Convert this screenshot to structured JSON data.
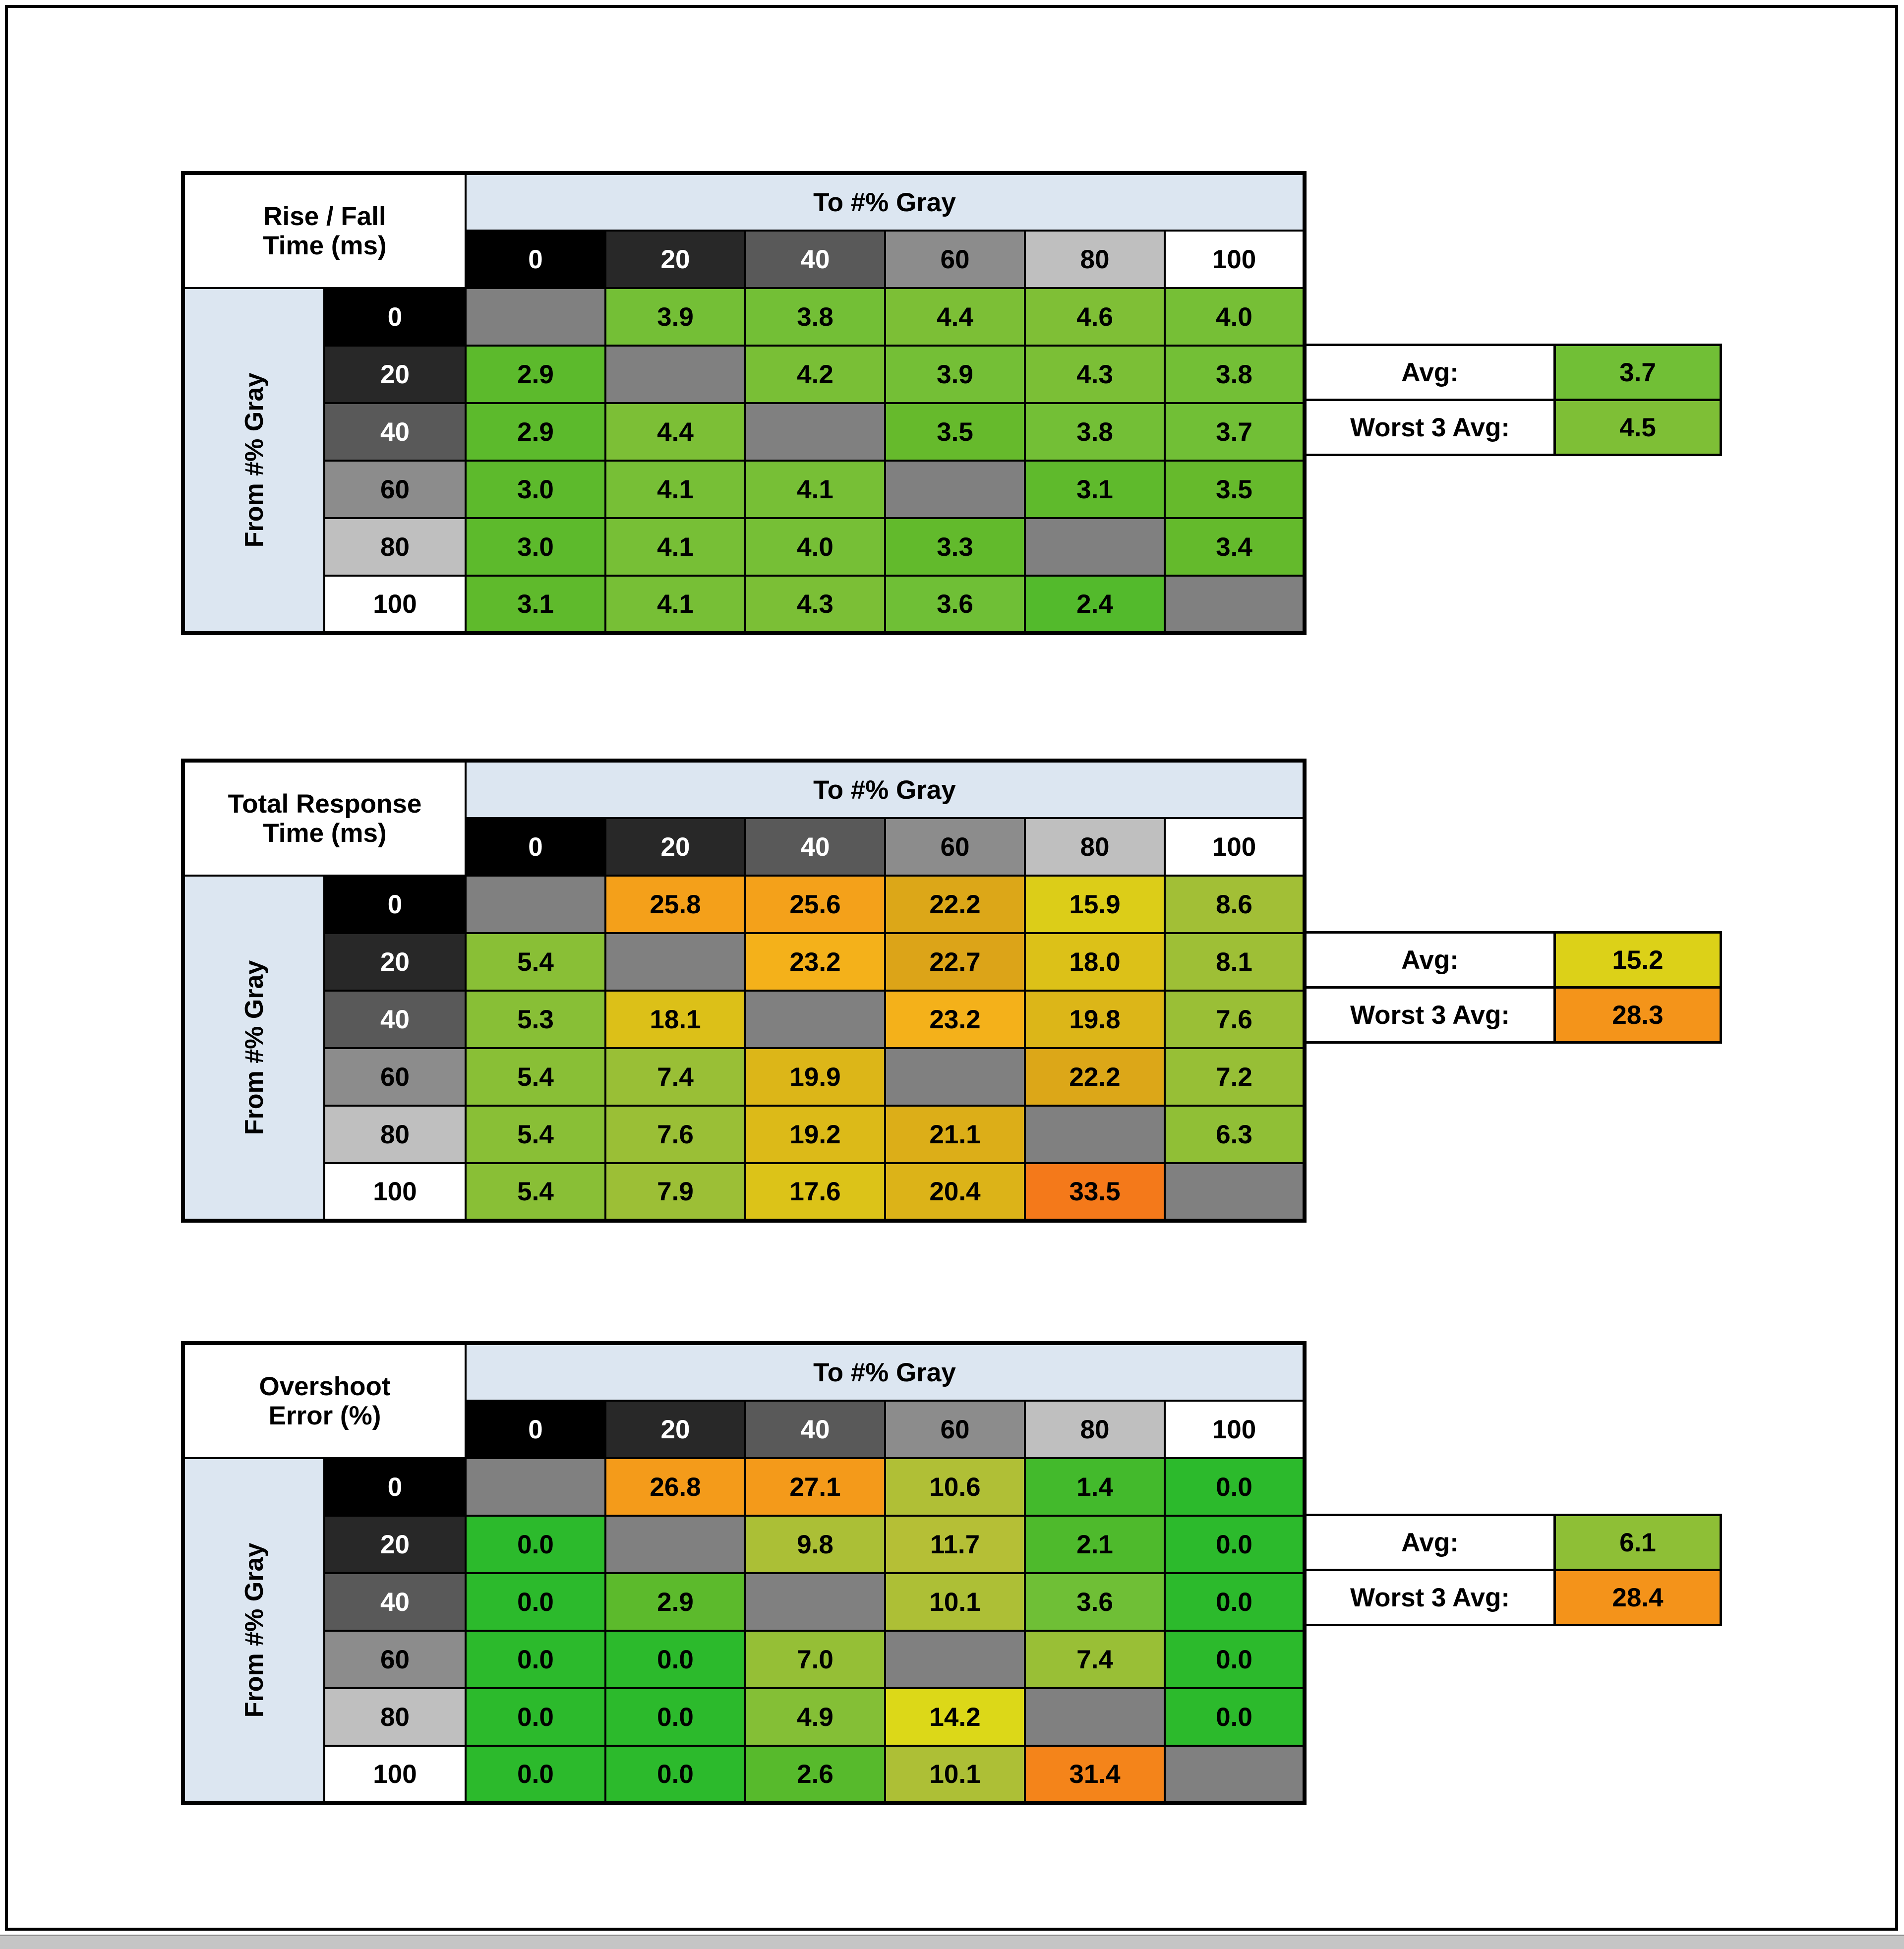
{
  "palette": {
    "page_background": "#ffffff",
    "frame_border": "#000000",
    "bottom_strip": "#c5c5c5",
    "bottom_strip_edge": "#8f8f8f",
    "header_blue": "#dce6f1",
    "diagonal_gray": "#808080",
    "grid_border": "#000000",
    "cell_text": "#000000",
    "gray_scale_bg": [
      "#000000",
      "#282828",
      "#595959",
      "#8c8c8c",
      "#bfbfbf",
      "#ffffff"
    ],
    "gray_scale_text": [
      "#ffffff",
      "#ffffff",
      "#ffffff",
      "#000000",
      "#000000",
      "#000000"
    ]
  },
  "axis": {
    "to_label": "To #% Gray",
    "from_label": "From #% Gray",
    "levels": [
      "0",
      "20",
      "40",
      "60",
      "80",
      "100"
    ]
  },
  "summary": {
    "avg_label": "Avg:",
    "worst_label": "Worst 3 Avg:"
  },
  "chart_data": [
    {
      "id": "rise-fall-time",
      "type": "heatmap",
      "title_lines": [
        "Rise / Fall",
        "Time (ms)"
      ],
      "x_axis": "To #% Gray",
      "y_axis": "From #% Gray",
      "x_categories": [
        "0",
        "20",
        "40",
        "60",
        "80",
        "100"
      ],
      "y_categories": [
        "0",
        "20",
        "40",
        "60",
        "80",
        "100"
      ],
      "rows": [
        [
          null,
          "3.9",
          "3.8",
          "4.4",
          "4.6",
          "4.0"
        ],
        [
          "2.9",
          null,
          "4.2",
          "3.9",
          "4.3",
          "3.8"
        ],
        [
          "2.9",
          "4.4",
          null,
          "3.5",
          "3.8",
          "3.7"
        ],
        [
          "3.0",
          "4.1",
          "4.1",
          null,
          "3.1",
          "3.5"
        ],
        [
          "3.0",
          "4.1",
          "4.0",
          "3.3",
          null,
          "3.4"
        ],
        [
          "3.1",
          "4.1",
          "4.3",
          "3.6",
          "2.4",
          null
        ]
      ],
      "avg": "3.7",
      "worst_3_avg": "4.5"
    },
    {
      "id": "total-response-time",
      "type": "heatmap",
      "title_lines": [
        "Total Response",
        "Time (ms)"
      ],
      "x_axis": "To #% Gray",
      "y_axis": "From #% Gray",
      "x_categories": [
        "0",
        "20",
        "40",
        "60",
        "80",
        "100"
      ],
      "y_categories": [
        "0",
        "20",
        "40",
        "60",
        "80",
        "100"
      ],
      "rows": [
        [
          null,
          "25.8",
          "25.6",
          "22.2",
          "15.9",
          "8.6"
        ],
        [
          "5.4",
          null,
          "23.2",
          "22.7",
          "18.0",
          "8.1"
        ],
        [
          "5.3",
          "18.1",
          null,
          "23.2",
          "19.8",
          "7.6"
        ],
        [
          "5.4",
          "7.4",
          "19.9",
          null,
          "22.2",
          "7.2"
        ],
        [
          "5.4",
          "7.6",
          "19.2",
          "21.1",
          null,
          "6.3"
        ],
        [
          "5.4",
          "7.9",
          "17.6",
          "20.4",
          "33.5",
          null
        ]
      ],
      "avg": "15.2",
      "worst_3_avg": "28.3"
    },
    {
      "id": "overshoot-error",
      "type": "heatmap",
      "title_lines": [
        "Overshoot",
        "Error (%)"
      ],
      "x_axis": "To #% Gray",
      "y_axis": "From #% Gray",
      "x_categories": [
        "0",
        "20",
        "40",
        "60",
        "80",
        "100"
      ],
      "y_categories": [
        "0",
        "20",
        "40",
        "60",
        "80",
        "100"
      ],
      "rows": [
        [
          null,
          "26.8",
          "27.1",
          "10.6",
          "1.4",
          "0.0"
        ],
        [
          "0.0",
          null,
          "9.8",
          "11.7",
          "2.1",
          "0.0"
        ],
        [
          "0.0",
          "2.9",
          null,
          "10.1",
          "3.6",
          "0.0"
        ],
        [
          "0.0",
          "0.0",
          "7.0",
          null,
          "7.4",
          "0.0"
        ],
        [
          "0.0",
          "0.0",
          "4.9",
          "14.2",
          null,
          "0.0"
        ],
        [
          "0.0",
          "0.0",
          "2.6",
          "10.1",
          "31.4",
          null
        ]
      ],
      "avg": "6.1",
      "worst_3_avg": "28.4"
    }
  ]
}
